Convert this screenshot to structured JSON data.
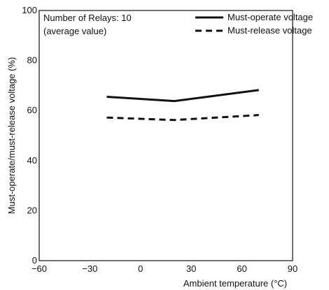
{
  "chart_data": {
    "type": "line",
    "title": "",
    "xlabel": "Ambient temperature (°C)",
    "ylabel": "Must-operate/must-release voltage (%)",
    "xlim": [
      -60,
      90
    ],
    "ylim": [
      0,
      100
    ],
    "x_ticks": [
      -60,
      -30,
      0,
      30,
      60,
      90
    ],
    "y_ticks": [
      0,
      20,
      40,
      60,
      80,
      100
    ],
    "x_tick_labels": [
      "−60",
      "−30",
      "0",
      "30",
      "60",
      "90"
    ],
    "y_tick_labels": [
      "0",
      "20",
      "40",
      "60",
      "80",
      "100"
    ],
    "grid": true,
    "legend_position": "top-right",
    "annotation": [
      "Number of Relays: 10",
      "(average value)"
    ],
    "series": [
      {
        "name": "Must-operate voltage",
        "style": "solid",
        "color": "#111111",
        "points": [
          {
            "x": -20,
            "y": 65.5
          },
          {
            "x": 20,
            "y": 63.8
          },
          {
            "x": 70,
            "y": 68.2
          }
        ]
      },
      {
        "name": "Must-release voltage",
        "style": "dashed",
        "color": "#111111",
        "points": [
          {
            "x": -20,
            "y": 57.2
          },
          {
            "x": 20,
            "y": 56.2
          },
          {
            "x": 70,
            "y": 58.2
          }
        ]
      }
    ]
  }
}
